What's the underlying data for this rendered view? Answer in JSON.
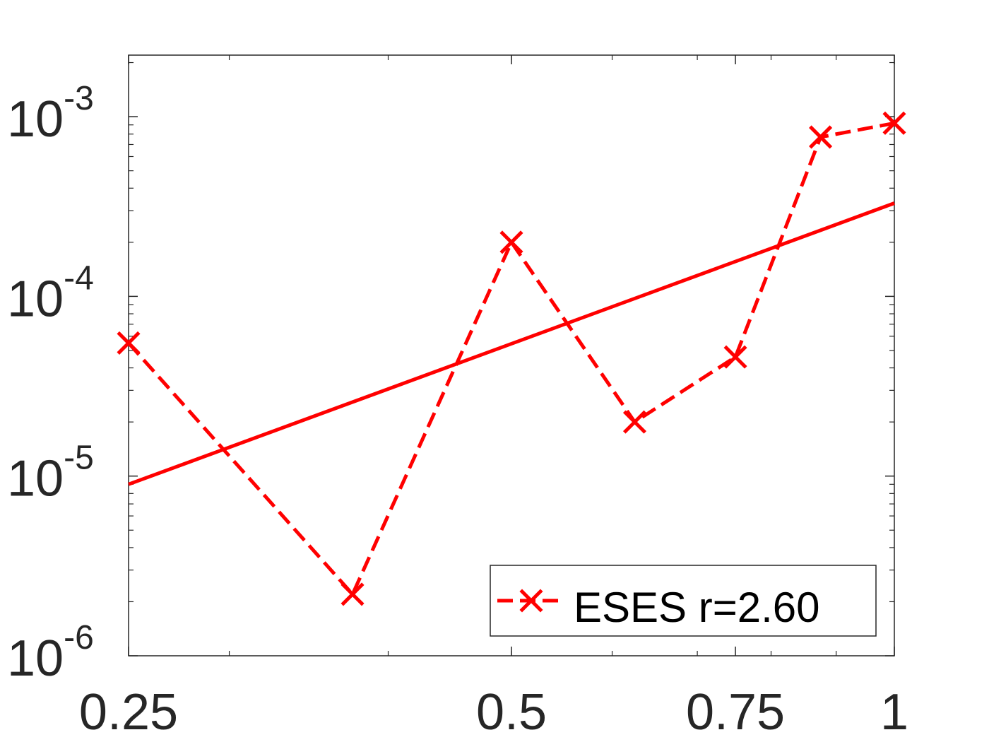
{
  "chart_data": {
    "type": "line",
    "title": "",
    "xlabel": "",
    "ylabel": "",
    "x_scale": "log",
    "y_scale": "log",
    "xlim": [
      0.25,
      1
    ],
    "ylim": [
      1e-06,
      0.0022
    ],
    "x_ticks": [
      {
        "value": 0.25,
        "label": "0.25"
      },
      {
        "value": 0.5,
        "label": "0.5"
      },
      {
        "value": 0.75,
        "label": "0.75"
      },
      {
        "value": 1,
        "label": "1"
      }
    ],
    "y_ticks": [
      {
        "value": 1e-06,
        "mantissa": "10",
        "exponent": "-6"
      },
      {
        "value": 1e-05,
        "mantissa": "10",
        "exponent": "-5"
      },
      {
        "value": 0.0001,
        "mantissa": "10",
        "exponent": "-4"
      },
      {
        "value": 0.001,
        "mantissa": "10",
        "exponent": "-3"
      }
    ],
    "grid": false,
    "legend_position": "bottom-right",
    "series": [
      {
        "name": "ESES r=2.60",
        "color": "#ff0000",
        "line_style": "dashed",
        "marker": "x",
        "x": [
          0.25,
          0.375,
          0.5,
          0.625,
          0.75,
          0.875,
          1.0
        ],
        "y": [
          5.5e-05,
          2.2e-06,
          0.0002,
          2e-05,
          4.6e-05,
          0.00077,
          0.00092
        ]
      },
      {
        "color": "#ff0000",
        "line_style": "solid",
        "marker": "none",
        "x": [
          0.25,
          1.0
        ],
        "y": [
          9e-06,
          0.00033
        ]
      }
    ]
  }
}
